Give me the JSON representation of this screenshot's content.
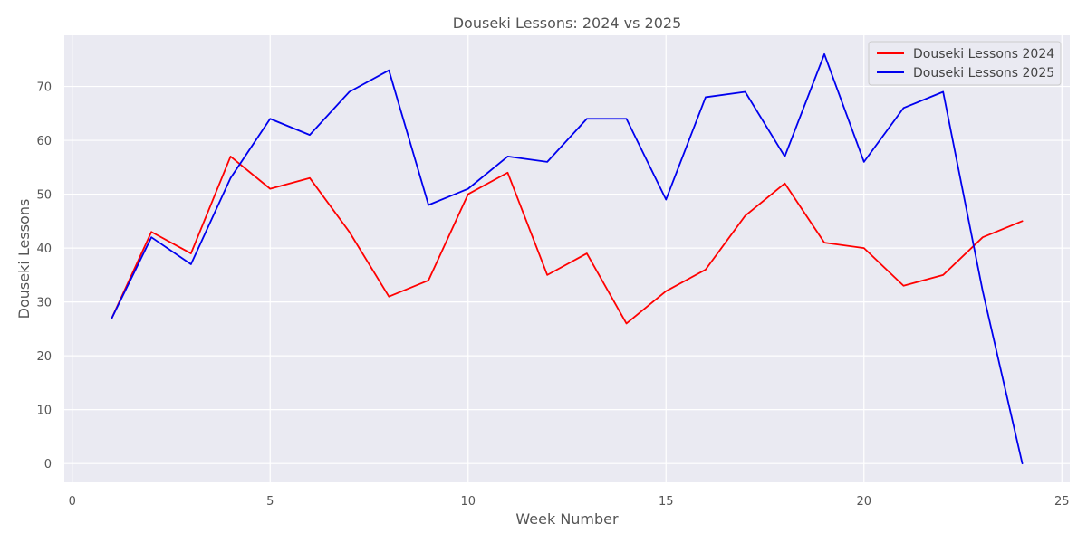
{
  "chart_data": {
    "type": "line",
    "title": "Douseki Lessons: 2024 vs 2025",
    "xlabel": "Week Number",
    "ylabel": "Douseki Lessons",
    "xlim": [
      -0.2,
      25.2
    ],
    "ylim": [
      -3.5,
      79.5
    ],
    "xticks": [
      0,
      5,
      10,
      15,
      20,
      25
    ],
    "yticks": [
      0,
      10,
      20,
      30,
      40,
      50,
      60,
      70
    ],
    "grid": true,
    "legend_position": "top-right",
    "x": [
      1,
      2,
      3,
      4,
      5,
      6,
      7,
      8,
      9,
      10,
      11,
      12,
      13,
      14,
      15,
      16,
      17,
      18,
      19,
      20,
      21,
      22,
      23,
      24
    ],
    "series": [
      {
        "name": "Douseki Lessons 2024",
        "color": "#ff0000",
        "values": [
          27,
          43,
          39,
          57,
          51,
          53,
          43,
          31,
          34,
          50,
          54,
          35,
          39,
          26,
          32,
          36,
          46,
          52,
          41,
          40,
          33,
          35,
          42,
          45
        ]
      },
      {
        "name": "Douseki Lessons 2025",
        "color": "#0000ee",
        "values": [
          27,
          42,
          37,
          53,
          64,
          61,
          69,
          73,
          48,
          51,
          57,
          56,
          64,
          64,
          49,
          68,
          69,
          57,
          76,
          56,
          66,
          69,
          32,
          0
        ]
      }
    ]
  }
}
